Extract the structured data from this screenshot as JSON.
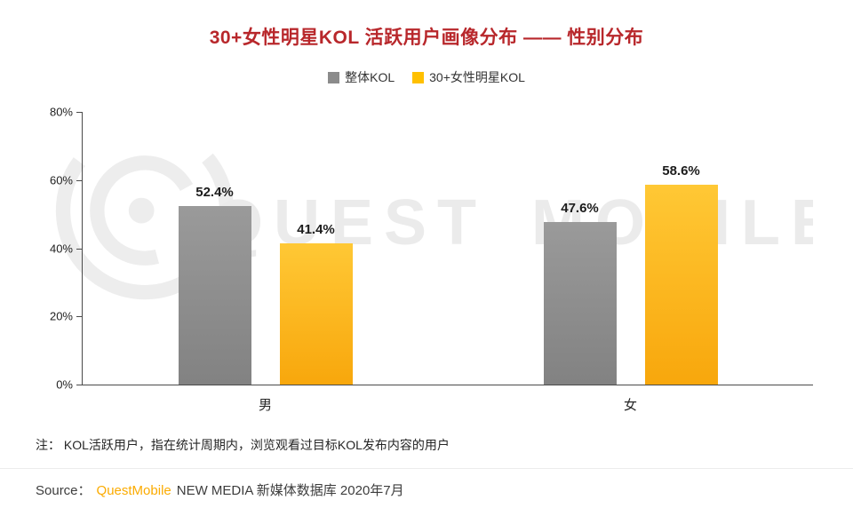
{
  "page": {
    "title": "30+女性明星KOL 活跃用户画像分布 —— 性别分布"
  },
  "legend": [
    {
      "label": "整体KOL",
      "color": "#8b8b8b"
    },
    {
      "label": "30+女性明星KOL",
      "color": "#ffc000"
    }
  ],
  "chart_data": {
    "type": "bar",
    "title": "30+女性明星KOL 活跃用户画像分布 —— 性别分布",
    "categories": [
      "男",
      "女"
    ],
    "series": [
      {
        "name": "整体KOL",
        "color_top": "#9a9a9a",
        "color": "#828282",
        "values": [
          52.4,
          47.6
        ]
      },
      {
        "name": "30+女性明星KOL",
        "color_top": "#ffc835",
        "color": "#f8a70c",
        "values": [
          41.4,
          58.6
        ]
      }
    ],
    "ylim": [
      0,
      80
    ],
    "yticks": [
      80,
      60,
      40,
      20,
      0
    ],
    "ytick_suffix": "%",
    "value_suffix": "%",
    "grid": false,
    "legend_position": "top"
  },
  "watermark": {
    "text": "QUEST MOBILE"
  },
  "note": "注： KOL活跃用户，指在统计周期内，浏览观看过目标KOL发布内容的用户",
  "source": {
    "prefix": "Source：",
    "brand": "QuestMobile",
    "suffix": "NEW MEDIA 新媒体数据库 2020年7月"
  },
  "colors": {
    "title": "#b8272b",
    "brand": "#fbab00",
    "axis": "#4a4a4a"
  }
}
